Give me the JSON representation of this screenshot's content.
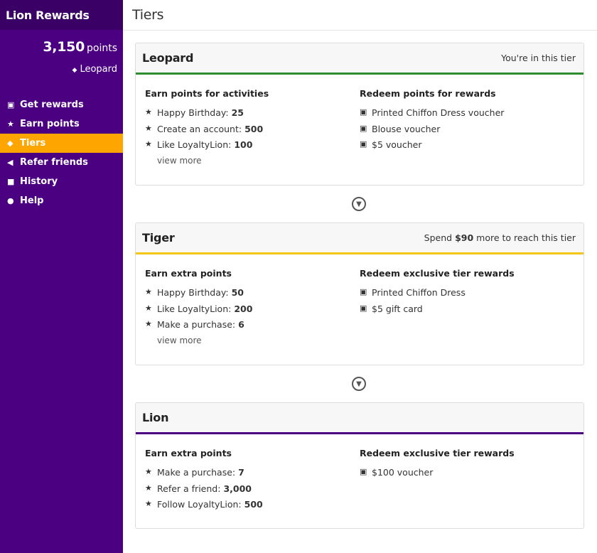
{
  "sidebar": {
    "title": "Lion Rewards",
    "points_value": "3,150",
    "points_unit": "points",
    "current_tier": "Leopard",
    "items": [
      {
        "label": "Get rewards",
        "icon": "gift-icon"
      },
      {
        "label": "Earn points",
        "icon": "star-icon"
      },
      {
        "label": "Tiers",
        "icon": "layers-icon",
        "active": true
      },
      {
        "label": "Refer friends",
        "icon": "megaphone-icon"
      },
      {
        "label": "History",
        "icon": "briefcase-icon"
      },
      {
        "label": "Help",
        "icon": "question-circle-icon"
      }
    ]
  },
  "main": {
    "title": "Tiers",
    "tiers": [
      {
        "name": "Leopard",
        "status": "You're in this tier",
        "accent": "#2e8b2e",
        "earn_title": "Earn points for activities",
        "earn": [
          {
            "label": "Happy Birthday:",
            "value": "25"
          },
          {
            "label": "Create an account:",
            "value": "500"
          },
          {
            "label": "Like LoyaltyLion:",
            "value": "100"
          }
        ],
        "view_more": "view more",
        "redeem_title": "Redeem points for rewards",
        "redeem": [
          "Printed Chiffon Dress voucher",
          "Blouse voucher",
          "$5 voucher"
        ]
      },
      {
        "name": "Tiger",
        "status_prefix": "Spend",
        "status_amount": "$90",
        "status_suffix": "more to reach this tier",
        "accent": "#f5c518",
        "earn_title": "Earn extra points",
        "earn": [
          {
            "label": "Happy Birthday:",
            "value": "50"
          },
          {
            "label": "Like LoyaltyLion:",
            "value": "200"
          },
          {
            "label": "Make a purchase:",
            "value": "6"
          }
        ],
        "view_more": "view more",
        "redeem_title": "Redeem exclusive tier rewards",
        "redeem": [
          "Printed Chiffon Dress",
          "$5 gift card"
        ]
      },
      {
        "name": "Lion",
        "accent": "#4b0082",
        "earn_title": "Earn extra points",
        "earn": [
          {
            "label": "Make a purchase:",
            "value": "7"
          },
          {
            "label": "Refer a friend:",
            "value": "3,000"
          },
          {
            "label": "Follow LoyaltyLion:",
            "value": "500"
          }
        ],
        "redeem_title": "Redeem exclusive tier rewards",
        "redeem": [
          "$100 voucher"
        ]
      }
    ]
  },
  "colors": {
    "sidebar_bg": "#4b0082",
    "sidebar_header_bg": "#3a0066",
    "active_nav": "#ffa500"
  }
}
